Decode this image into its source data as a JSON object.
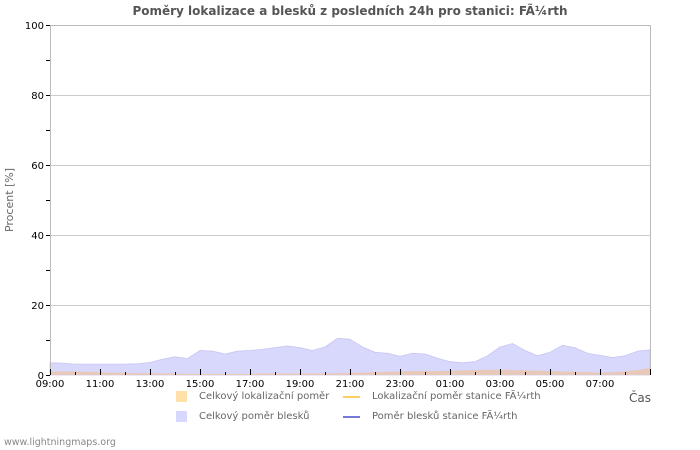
{
  "title": "Poměry lokalizace a blesků z posledních 24h pro stanici: FÃ¼rth",
  "footer": "www.lightningmaps.org",
  "legend": {
    "items": [
      {
        "label": "Celkový lokalizační poměr",
        "kind": "area",
        "color": "#ffe0a8"
      },
      {
        "label": "Lokalizační poměr stanice FÃ¼rth",
        "kind": "line",
        "color": "#ffcc66"
      },
      {
        "label": "Celkový poměr blesků",
        "kind": "area",
        "color": "#d8d8ff"
      },
      {
        "label": "Poměr blesků stanice FÃ¼rth",
        "kind": "line",
        "color": "#7777dd"
      }
    ]
  },
  "colors": {
    "blue_area": "#d8d8fc",
    "blue_edge": "#c6c6f2",
    "orange_area": "#e8c8b8",
    "grid": "#cccccc",
    "axis": "#bbbbbb"
  },
  "chart_data": {
    "type": "area",
    "title": "Poměry lokalizace a blesků z posledních 24h pro stanici: FÃ¼rth",
    "xlabel": "Čas",
    "ylabel": "Procent   [%]",
    "ylim": [
      0,
      100
    ],
    "yticks": [
      "0",
      "20",
      "40",
      "60",
      "80",
      "100"
    ],
    "xtick_labels": [
      "09:00",
      "11:00",
      "13:00",
      "15:00",
      "17:00",
      "19:00",
      "21:00",
      "23:00",
      "01:00",
      "03:00",
      "05:00",
      "07:00"
    ],
    "grid": true,
    "legend_position": "bottom",
    "x": [
      "09:00",
      "09:30",
      "10:00",
      "10:30",
      "11:00",
      "11:30",
      "12:00",
      "12:30",
      "13:00",
      "13:30",
      "14:00",
      "14:30",
      "15:00",
      "15:30",
      "16:00",
      "16:30",
      "17:00",
      "17:30",
      "18:00",
      "18:30",
      "19:00",
      "19:30",
      "20:00",
      "20:30",
      "21:00",
      "21:30",
      "22:00",
      "22:30",
      "23:00",
      "23:30",
      "00:00",
      "00:30",
      "01:00",
      "01:30",
      "02:00",
      "02:30",
      "03:00",
      "03:30",
      "04:00",
      "04:30",
      "05:00",
      "05:30",
      "06:00",
      "06:30",
      "07:00",
      "07:30",
      "08:00",
      "08:30",
      "09:00"
    ],
    "series": [
      {
        "name": "Celkový poměr blesků",
        "values": [
          3.5,
          3.4,
          3.1,
          3.1,
          3.1,
          3.1,
          3.1,
          3.2,
          3.6,
          4.5,
          5.2,
          4.7,
          7.0,
          6.8,
          6.0,
          6.8,
          7.0,
          7.3,
          7.8,
          8.3,
          7.8,
          7.0,
          8.0,
          10.5,
          10.2,
          8.0,
          6.5,
          6.2,
          5.3,
          6.2,
          6.0,
          4.8,
          3.8,
          3.5,
          3.8,
          5.5,
          8.0,
          9.0,
          7.0,
          5.5,
          6.5,
          8.5,
          7.8,
          6.2,
          5.6,
          5.0,
          5.5,
          6.8,
          7.2
        ]
      },
      {
        "name": "Celkový lokalizační poměr",
        "values": [
          1.0,
          1.0,
          1.0,
          0.9,
          0.8,
          0.7,
          0.6,
          0.5,
          0.5,
          0.4,
          0.4,
          0.3,
          0.3,
          0.3,
          0.3,
          0.3,
          0.3,
          0.4,
          0.4,
          0.4,
          0.4,
          0.4,
          0.4,
          0.5,
          0.6,
          0.7,
          0.8,
          0.9,
          1.0,
          1.1,
          1.1,
          1.1,
          1.2,
          1.3,
          1.4,
          1.5,
          1.5,
          1.4,
          1.3,
          1.2,
          1.1,
          1.0,
          0.9,
          0.8,
          0.7,
          0.8,
          1.0,
          1.4,
          2.0
        ]
      },
      {
        "name": "Lokalizační poměr stanice FÃ¼rth",
        "values": []
      },
      {
        "name": "Poměr blesků stanice FÃ¼rth",
        "values": []
      }
    ]
  }
}
